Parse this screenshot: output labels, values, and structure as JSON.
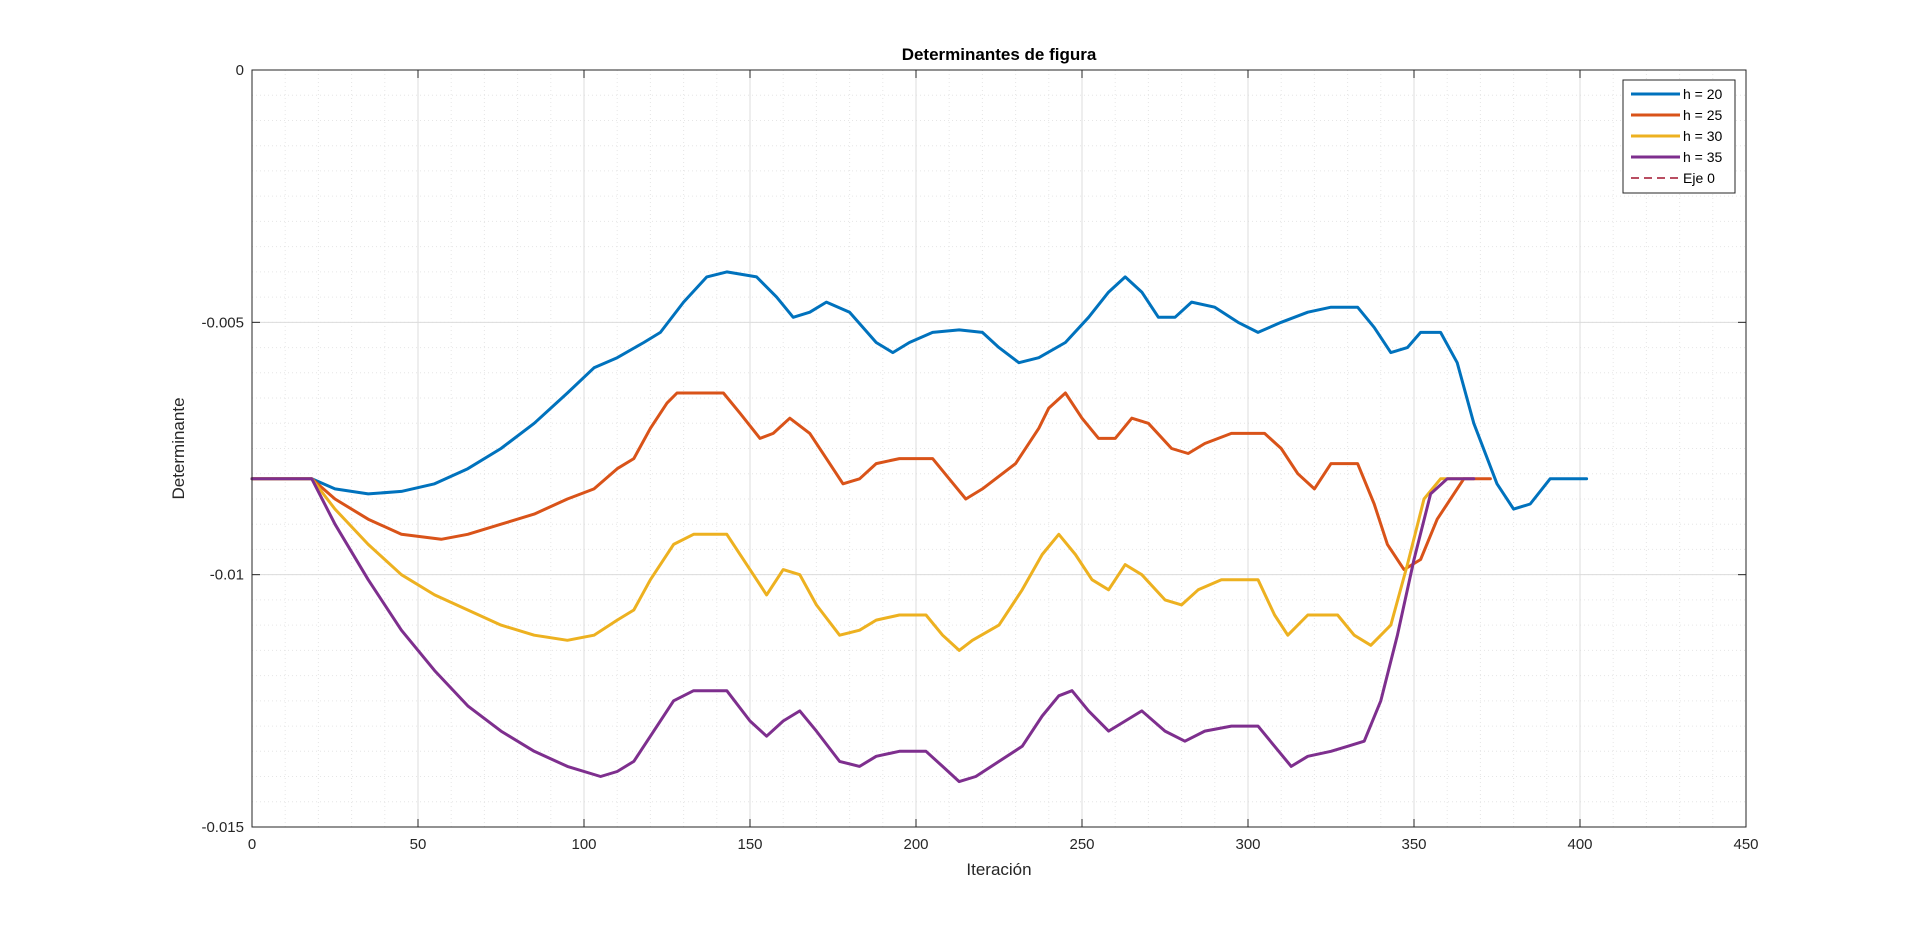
{
  "chart_data": {
    "type": "line",
    "title": "Determinantes de figura",
    "xlabel": "Iteración",
    "ylabel": "Determinante",
    "xlim": [
      0,
      450
    ],
    "ylim": [
      -0.015,
      0
    ],
    "xticks": [
      0,
      50,
      100,
      150,
      200,
      250,
      300,
      350,
      400,
      450
    ],
    "xtick_labels": [
      "0",
      "50",
      "100",
      "150",
      "200",
      "250",
      "300",
      "350",
      "400",
      "450"
    ],
    "yticks": [
      0,
      -0.005,
      -0.01,
      -0.015
    ],
    "ytick_labels": [
      "0",
      "-0.005",
      "-0.01",
      "-0.015"
    ],
    "grid": true,
    "minor_grid": true,
    "legend_position": "top-right",
    "series": [
      {
        "name": "h = 20",
        "color": "#0072BD",
        "style": "solid",
        "points": [
          [
            0,
            -0.0081
          ],
          [
            18,
            -0.0081
          ],
          [
            25,
            -0.0083
          ],
          [
            35,
            -0.0084
          ],
          [
            45,
            -0.00835
          ],
          [
            55,
            -0.0082
          ],
          [
            65,
            -0.0079
          ],
          [
            75,
            -0.0075
          ],
          [
            85,
            -0.007
          ],
          [
            95,
            -0.0064
          ],
          [
            103,
            -0.0059
          ],
          [
            110,
            -0.0057
          ],
          [
            118,
            -0.0054
          ],
          [
            123,
            -0.0052
          ],
          [
            130,
            -0.0046
          ],
          [
            137,
            -0.0041
          ],
          [
            143,
            -0.004
          ],
          [
            152,
            -0.0041
          ],
          [
            158,
            -0.0045
          ],
          [
            163,
            -0.0049
          ],
          [
            168,
            -0.0048
          ],
          [
            173,
            -0.0046
          ],
          [
            180,
            -0.0048
          ],
          [
            188,
            -0.0054
          ],
          [
            193,
            -0.0056
          ],
          [
            198,
            -0.0054
          ],
          [
            205,
            -0.0052
          ],
          [
            213,
            -0.00515
          ],
          [
            220,
            -0.0052
          ],
          [
            225,
            -0.0055
          ],
          [
            231,
            -0.0058
          ],
          [
            237,
            -0.0057
          ],
          [
            245,
            -0.0054
          ],
          [
            252,
            -0.0049
          ],
          [
            258,
            -0.0044
          ],
          [
            263,
            -0.0041
          ],
          [
            268,
            -0.0044
          ],
          [
            273,
            -0.0049
          ],
          [
            278,
            -0.0049
          ],
          [
            283,
            -0.0046
          ],
          [
            290,
            -0.0047
          ],
          [
            297,
            -0.005
          ],
          [
            303,
            -0.0052
          ],
          [
            310,
            -0.005
          ],
          [
            318,
            -0.0048
          ],
          [
            325,
            -0.0047
          ],
          [
            333,
            -0.0047
          ],
          [
            338,
            -0.0051
          ],
          [
            343,
            -0.0056
          ],
          [
            348,
            -0.0055
          ],
          [
            352,
            -0.0052
          ],
          [
            358,
            -0.0052
          ],
          [
            363,
            -0.0058
          ],
          [
            368,
            -0.007
          ],
          [
            375,
            -0.0082
          ],
          [
            380,
            -0.0087
          ],
          [
            385,
            -0.0086
          ],
          [
            391,
            -0.0081
          ],
          [
            402,
            -0.0081
          ]
        ]
      },
      {
        "name": "h = 25",
        "color": "#D95319",
        "style": "solid",
        "points": [
          [
            0,
            -0.0081
          ],
          [
            18,
            -0.0081
          ],
          [
            25,
            -0.0085
          ],
          [
            35,
            -0.0089
          ],
          [
            45,
            -0.0092
          ],
          [
            57,
            -0.0093
          ],
          [
            65,
            -0.0092
          ],
          [
            75,
            -0.009
          ],
          [
            85,
            -0.0088
          ],
          [
            95,
            -0.0085
          ],
          [
            103,
            -0.0083
          ],
          [
            110,
            -0.0079
          ],
          [
            115,
            -0.0077
          ],
          [
            120,
            -0.0071
          ],
          [
            125,
            -0.0066
          ],
          [
            128,
            -0.0064
          ],
          [
            135,
            -0.0064
          ],
          [
            142,
            -0.0064
          ],
          [
            147,
            -0.0068
          ],
          [
            153,
            -0.0073
          ],
          [
            157,
            -0.0072
          ],
          [
            162,
            -0.0069
          ],
          [
            168,
            -0.0072
          ],
          [
            173,
            -0.0077
          ],
          [
            178,
            -0.0082
          ],
          [
            183,
            -0.0081
          ],
          [
            188,
            -0.0078
          ],
          [
            195,
            -0.0077
          ],
          [
            205,
            -0.0077
          ],
          [
            210,
            -0.0081
          ],
          [
            215,
            -0.0085
          ],
          [
            220,
            -0.0083
          ],
          [
            230,
            -0.0078
          ],
          [
            237,
            -0.0071
          ],
          [
            240,
            -0.0067
          ],
          [
            245,
            -0.0064
          ],
          [
            250,
            -0.0069
          ],
          [
            255,
            -0.0073
          ],
          [
            260,
            -0.0073
          ],
          [
            265,
            -0.0069
          ],
          [
            270,
            -0.007
          ],
          [
            277,
            -0.0075
          ],
          [
            282,
            -0.0076
          ],
          [
            287,
            -0.0074
          ],
          [
            295,
            -0.0072
          ],
          [
            305,
            -0.0072
          ],
          [
            310,
            -0.0075
          ],
          [
            315,
            -0.008
          ],
          [
            320,
            -0.0083
          ],
          [
            325,
            -0.0078
          ],
          [
            333,
            -0.0078
          ],
          [
            338,
            -0.0086
          ],
          [
            342,
            -0.0094
          ],
          [
            347,
            -0.0099
          ],
          [
            352,
            -0.0097
          ],
          [
            357,
            -0.0089
          ],
          [
            365,
            -0.0081
          ],
          [
            373,
            -0.0081
          ]
        ]
      },
      {
        "name": "h = 30",
        "color": "#EDB120",
        "style": "solid",
        "points": [
          [
            0,
            -0.0081
          ],
          [
            18,
            -0.0081
          ],
          [
            25,
            -0.0087
          ],
          [
            35,
            -0.0094
          ],
          [
            45,
            -0.01
          ],
          [
            55,
            -0.0104
          ],
          [
            65,
            -0.0107
          ],
          [
            75,
            -0.011
          ],
          [
            85,
            -0.0112
          ],
          [
            95,
            -0.0113
          ],
          [
            103,
            -0.0112
          ],
          [
            110,
            -0.0109
          ],
          [
            115,
            -0.0107
          ],
          [
            120,
            -0.0101
          ],
          [
            127,
            -0.0094
          ],
          [
            133,
            -0.0092
          ],
          [
            143,
            -0.0092
          ],
          [
            150,
            -0.0099
          ],
          [
            155,
            -0.0104
          ],
          [
            160,
            -0.0099
          ],
          [
            165,
            -0.01
          ],
          [
            170,
            -0.0106
          ],
          [
            177,
            -0.0112
          ],
          [
            183,
            -0.0111
          ],
          [
            188,
            -0.0109
          ],
          [
            195,
            -0.0108
          ],
          [
            203,
            -0.0108
          ],
          [
            208,
            -0.0112
          ],
          [
            213,
            -0.0115
          ],
          [
            217,
            -0.0113
          ],
          [
            225,
            -0.011
          ],
          [
            232,
            -0.0103
          ],
          [
            238,
            -0.0096
          ],
          [
            243,
            -0.0092
          ],
          [
            248,
            -0.0096
          ],
          [
            253,
            -0.0101
          ],
          [
            258,
            -0.0103
          ],
          [
            263,
            -0.0098
          ],
          [
            268,
            -0.01
          ],
          [
            275,
            -0.0105
          ],
          [
            280,
            -0.0106
          ],
          [
            285,
            -0.0103
          ],
          [
            292,
            -0.0101
          ],
          [
            303,
            -0.0101
          ],
          [
            308,
            -0.0108
          ],
          [
            312,
            -0.0112
          ],
          [
            318,
            -0.0108
          ],
          [
            327,
            -0.0108
          ],
          [
            332,
            -0.0112
          ],
          [
            337,
            -0.0114
          ],
          [
            343,
            -0.011
          ],
          [
            348,
            -0.0098
          ],
          [
            353,
            -0.0085
          ],
          [
            358,
            -0.0081
          ],
          [
            365,
            -0.0081
          ]
        ]
      },
      {
        "name": "h = 35",
        "color": "#7E2F8E",
        "style": "solid",
        "points": [
          [
            0,
            -0.0081
          ],
          [
            18,
            -0.0081
          ],
          [
            25,
            -0.009
          ],
          [
            35,
            -0.0101
          ],
          [
            45,
            -0.0111
          ],
          [
            55,
            -0.0119
          ],
          [
            65,
            -0.0126
          ],
          [
            75,
            -0.0131
          ],
          [
            85,
            -0.0135
          ],
          [
            95,
            -0.0138
          ],
          [
            105,
            -0.014
          ],
          [
            110,
            -0.0139
          ],
          [
            115,
            -0.0137
          ],
          [
            120,
            -0.0132
          ],
          [
            127,
            -0.0125
          ],
          [
            133,
            -0.0123
          ],
          [
            143,
            -0.0123
          ],
          [
            150,
            -0.0129
          ],
          [
            155,
            -0.0132
          ],
          [
            160,
            -0.0129
          ],
          [
            165,
            -0.0127
          ],
          [
            170,
            -0.0131
          ],
          [
            177,
            -0.0137
          ],
          [
            183,
            -0.0138
          ],
          [
            188,
            -0.0136
          ],
          [
            195,
            -0.0135
          ],
          [
            203,
            -0.0135
          ],
          [
            208,
            -0.0138
          ],
          [
            213,
            -0.0141
          ],
          [
            218,
            -0.014
          ],
          [
            225,
            -0.0137
          ],
          [
            232,
            -0.0134
          ],
          [
            238,
            -0.0128
          ],
          [
            243,
            -0.0124
          ],
          [
            247,
            -0.0123
          ],
          [
            252,
            -0.0127
          ],
          [
            258,
            -0.0131
          ],
          [
            263,
            -0.0129
          ],
          [
            268,
            -0.0127
          ],
          [
            275,
            -0.0131
          ],
          [
            281,
            -0.0133
          ],
          [
            287,
            -0.0131
          ],
          [
            295,
            -0.013
          ],
          [
            303,
            -0.013
          ],
          [
            308,
            -0.0134
          ],
          [
            313,
            -0.0138
          ],
          [
            318,
            -0.0136
          ],
          [
            325,
            -0.0135
          ],
          [
            330,
            -0.0134
          ],
          [
            335,
            -0.0133
          ],
          [
            340,
            -0.0125
          ],
          [
            345,
            -0.0112
          ],
          [
            350,
            -0.0097
          ],
          [
            355,
            -0.0084
          ],
          [
            360,
            -0.0081
          ],
          [
            368,
            -0.0081
          ]
        ]
      },
      {
        "name": "Eje 0",
        "color": "#A2142F",
        "style": "dashed",
        "points": []
      }
    ]
  }
}
